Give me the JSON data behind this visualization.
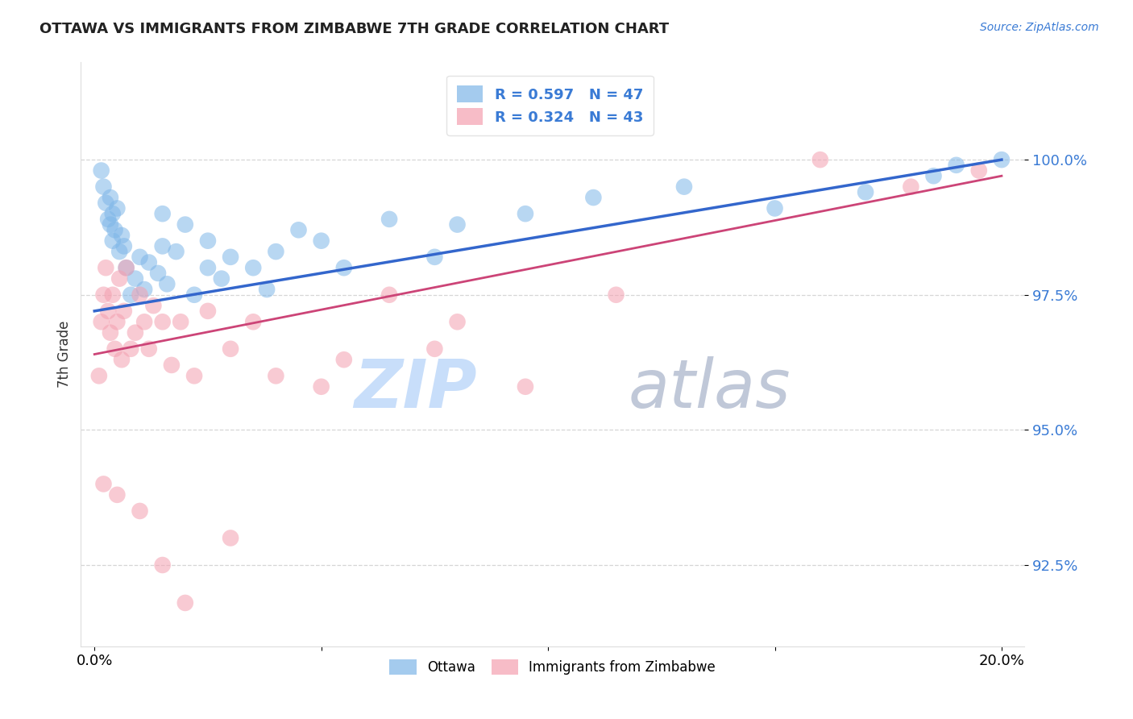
{
  "title": "OTTAWA VS IMMIGRANTS FROM ZIMBABWE 7TH GRADE CORRELATION CHART",
  "source_text": "Source: ZipAtlas.com",
  "ylabel": "7th Grade",
  "xlim": [
    -0.3,
    20.5
  ],
  "ylim": [
    91.0,
    101.8
  ],
  "yticks": [
    92.5,
    95.0,
    97.5,
    100.0
  ],
  "ytick_labels": [
    "92.5%",
    "95.0%",
    "97.5%",
    "100.0%"
  ],
  "xticks": [
    0.0,
    5.0,
    10.0,
    15.0,
    20.0
  ],
  "xtick_labels": [
    "0.0%",
    "",
    "",
    "",
    "20.0%"
  ],
  "legend_blue_r": "R = 0.597",
  "legend_blue_n": "N = 47",
  "legend_pink_r": "R = 0.324",
  "legend_pink_n": "N = 43",
  "blue_color": "#7EB6E8",
  "pink_color": "#F4A0B0",
  "blue_line_color": "#3366CC",
  "pink_line_color": "#CC4477",
  "axis_color": "#3A7BD5",
  "grid_color": "#CCCCCC",
  "title_color": "#222222",
  "watermark_blue": "#C8DEFA",
  "watermark_gray": "#C0C8D8",
  "blue_trendline_x": [
    0.0,
    20.0
  ],
  "blue_trendline_y": [
    97.2,
    100.0
  ],
  "pink_trendline_x": [
    0.0,
    20.0
  ],
  "pink_trendline_y": [
    96.4,
    99.7
  ],
  "ottawa_x": [
    0.15,
    0.2,
    0.25,
    0.3,
    0.35,
    0.35,
    0.4,
    0.4,
    0.45,
    0.5,
    0.55,
    0.6,
    0.65,
    0.7,
    0.8,
    0.9,
    1.0,
    1.1,
    1.2,
    1.4,
    1.5,
    1.5,
    1.6,
    1.8,
    2.0,
    2.2,
    2.5,
    2.5,
    2.8,
    3.0,
    3.5,
    3.8,
    4.0,
    4.5,
    5.0,
    5.5,
    6.5,
    7.5,
    8.0,
    9.5,
    11.0,
    13.0,
    15.0,
    17.0,
    18.5,
    19.0,
    20.0
  ],
  "ottawa_y": [
    99.8,
    99.5,
    99.2,
    98.9,
    98.8,
    99.3,
    98.5,
    99.0,
    98.7,
    99.1,
    98.3,
    98.6,
    98.4,
    98.0,
    97.5,
    97.8,
    98.2,
    97.6,
    98.1,
    97.9,
    98.4,
    99.0,
    97.7,
    98.3,
    98.8,
    97.5,
    98.0,
    98.5,
    97.8,
    98.2,
    98.0,
    97.6,
    98.3,
    98.7,
    98.5,
    98.0,
    98.9,
    98.2,
    98.8,
    99.0,
    99.3,
    99.5,
    99.1,
    99.4,
    99.7,
    99.9,
    100.0
  ],
  "zimbabwe_x": [
    0.1,
    0.15,
    0.2,
    0.25,
    0.3,
    0.35,
    0.4,
    0.45,
    0.5,
    0.55,
    0.6,
    0.65,
    0.7,
    0.8,
    0.9,
    1.0,
    1.1,
    1.2,
    1.3,
    1.5,
    1.7,
    1.9,
    2.2,
    2.5,
    3.0,
    3.5,
    4.0,
    5.0,
    5.5,
    6.5,
    7.5,
    8.0,
    9.5,
    11.5,
    16.0,
    18.0,
    19.5,
    0.2,
    0.5,
    1.0,
    1.5,
    2.0,
    3.0
  ],
  "zimbabwe_y": [
    96.0,
    97.0,
    97.5,
    98.0,
    97.2,
    96.8,
    97.5,
    96.5,
    97.0,
    97.8,
    96.3,
    97.2,
    98.0,
    96.5,
    96.8,
    97.5,
    97.0,
    96.5,
    97.3,
    97.0,
    96.2,
    97.0,
    96.0,
    97.2,
    96.5,
    97.0,
    96.0,
    95.8,
    96.3,
    97.5,
    96.5,
    97.0,
    95.8,
    97.5,
    100.0,
    99.5,
    99.8,
    94.0,
    93.8,
    93.5,
    92.5,
    91.8,
    93.0
  ]
}
